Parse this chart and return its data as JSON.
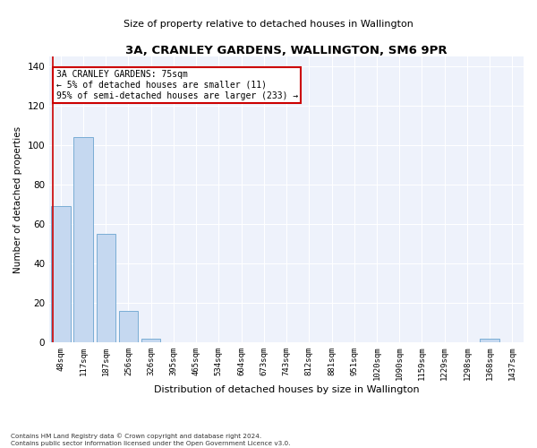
{
  "title": "3A, CRANLEY GARDENS, WALLINGTON, SM6 9PR",
  "subtitle": "Size of property relative to detached houses in Wallington",
  "xlabel": "Distribution of detached houses by size in Wallington",
  "ylabel": "Number of detached properties",
  "bar_color": "#c5d8f0",
  "bar_edge_color": "#7aadd4",
  "background_color": "#eef2fb",
  "grid_color": "#ffffff",
  "categories": [
    "48sqm",
    "117sqm",
    "187sqm",
    "256sqm",
    "326sqm",
    "395sqm",
    "465sqm",
    "534sqm",
    "604sqm",
    "673sqm",
    "743sqm",
    "812sqm",
    "881sqm",
    "951sqm",
    "1020sqm",
    "1090sqm",
    "1159sqm",
    "1229sqm",
    "1298sqm",
    "1368sqm",
    "1437sqm"
  ],
  "values": [
    69,
    104,
    55,
    16,
    2,
    0,
    0,
    0,
    0,
    0,
    0,
    0,
    0,
    0,
    0,
    0,
    0,
    0,
    0,
    2,
    0
  ],
  "ylim": [
    0,
    145
  ],
  "yticks": [
    0,
    20,
    40,
    60,
    80,
    100,
    120,
    140
  ],
  "annotation_box_text": "3A CRANLEY GARDENS: 75sqm\n← 5% of detached houses are smaller (11)\n95% of semi-detached houses are larger (233) →",
  "annotation_box_color": "#cc0000",
  "annotation_box_fill": "#ffffff",
  "footnote1": "Contains HM Land Registry data © Crown copyright and database right 2024.",
  "footnote2": "Contains public sector information licensed under the Open Government Licence v3.0."
}
